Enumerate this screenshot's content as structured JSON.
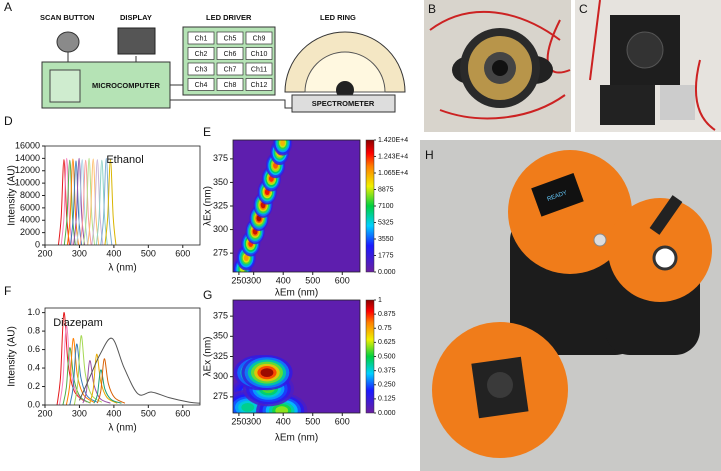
{
  "panel_labels": [
    "A",
    "B",
    "C",
    "D",
    "E",
    "F",
    "G",
    "H"
  ],
  "diagram": {
    "scan_button": "SCAN BUTTON",
    "display": "DISPLAY",
    "led_driver": "LED DRIVER",
    "led_ring": "LED RING",
    "microcomputer": "MICROCOMPUTER",
    "spectrometer": "SPECTROMETER",
    "channels": [
      "Ch1",
      "Ch5",
      "Ch9",
      "Ch2",
      "Ch6",
      "Ch10",
      "Ch3",
      "Ch7",
      "Ch11",
      "Ch4",
      "Ch8",
      "Ch12"
    ]
  },
  "photo_text": "READY",
  "chart_data": [
    {
      "type": "line",
      "title": "Ethanol",
      "x_label": "λ (nm)",
      "y_label": "Intensity (AU)",
      "xlim": [
        200,
        650
      ],
      "ylim": [
        0,
        16000
      ],
      "xticks": [
        200,
        300,
        400,
        500,
        600
      ],
      "yticks": [
        0,
        2000,
        4000,
        6000,
        8000,
        10000,
        12000,
        14000,
        16000
      ],
      "series": [
        {
          "color": "#e41a1c",
          "x": [
            239,
            247,
            255,
            263,
            271
          ],
          "values": [
            0,
            4500,
            13800,
            4500,
            0
          ]
        },
        {
          "color": "#f781bf",
          "x": [
            247,
            255,
            263,
            271,
            279
          ],
          "values": [
            0,
            4500,
            14000,
            4500,
            0
          ]
        },
        {
          "color": "#4daf4a",
          "x": [
            256,
            264,
            272,
            280,
            288
          ],
          "values": [
            0,
            4500,
            13700,
            4500,
            0
          ]
        },
        {
          "color": "#ff7f00",
          "x": [
            265,
            273,
            281,
            289,
            297
          ],
          "values": [
            0,
            4500,
            13900,
            4500,
            0
          ]
        },
        {
          "color": "#377eb8",
          "x": [
            274,
            282,
            290,
            298,
            306
          ],
          "values": [
            0,
            4500,
            13600,
            4500,
            0
          ]
        },
        {
          "color": "#984ea3",
          "x": [
            283,
            291,
            299,
            307,
            315
          ],
          "values": [
            0,
            4500,
            14000,
            4500,
            0
          ]
        },
        {
          "color": "#a6cee3",
          "x": [
            292,
            300,
            308,
            316,
            324
          ],
          "values": [
            0,
            4500,
            13800,
            4500,
            0
          ]
        },
        {
          "color": "#fb9a99",
          "x": [
            302,
            310,
            318,
            326,
            334
          ],
          "values": [
            0,
            4500,
            13700,
            4500,
            0
          ]
        },
        {
          "color": "#b2df8a",
          "x": [
            312,
            320,
            328,
            336,
            344
          ],
          "values": [
            0,
            4500,
            14000,
            4500,
            0
          ]
        },
        {
          "color": "#fdbf6f",
          "x": [
            324,
            332,
            340,
            348,
            356
          ],
          "values": [
            0,
            4500,
            13900,
            4500,
            0
          ]
        },
        {
          "color": "#cab2d6",
          "x": [
            336,
            344,
            352,
            360,
            368
          ],
          "values": [
            0,
            4500,
            13800,
            4500,
            0
          ]
        },
        {
          "color": "#8dd3c7",
          "x": [
            349,
            357,
            365,
            373,
            381
          ],
          "values": [
            0,
            4500,
            13700,
            4500,
            0
          ]
        },
        {
          "color": "#80b1d3",
          "x": [
            362,
            370,
            378,
            386,
            394
          ],
          "values": [
            0,
            4500,
            14000,
            4500,
            0
          ]
        },
        {
          "color": "#d9b500",
          "x": [
            374,
            382,
            390,
            398,
            406
          ],
          "values": [
            0,
            4500,
            13800,
            4500,
            0
          ]
        }
      ]
    },
    {
      "type": "heatmap",
      "x_label": "λEm (nm)",
      "y_label": "λEx (nm)",
      "xlim": [
        230,
        660
      ],
      "ylim": [
        255,
        395
      ],
      "xticks": [
        250,
        300,
        400,
        500,
        600
      ],
      "yticks": [
        275,
        300,
        325,
        350,
        375
      ],
      "clim": [
        0,
        14200
      ],
      "cticks": [
        {
          "value": 14200,
          "label": "1.420E+4"
        },
        {
          "value": 12430,
          "label": "1.243E+4"
        },
        {
          "value": 10650,
          "label": "1.065E+4"
        },
        8875,
        7100,
        5325,
        3550,
        1775,
        {
          "value": 0,
          "label": "0.000"
        }
      ],
      "cells": [
        {
          "em": 262,
          "ex": 258,
          "intensity": 9000
        },
        {
          "em": 275,
          "ex": 270,
          "intensity": 11000
        },
        {
          "em": 290,
          "ex": 285,
          "intensity": 12500
        },
        {
          "em": 305,
          "ex": 298,
          "intensity": 13500
        },
        {
          "em": 318,
          "ex": 312,
          "intensity": 14000
        },
        {
          "em": 332,
          "ex": 326,
          "intensity": 13500
        },
        {
          "em": 346,
          "ex": 340,
          "intensity": 13000
        },
        {
          "em": 360,
          "ex": 354,
          "intensity": 12500
        },
        {
          "em": 374,
          "ex": 368,
          "intensity": 12000
        },
        {
          "em": 388,
          "ex": 382,
          "intensity": 11500
        },
        {
          "em": 398,
          "ex": 392,
          "intensity": 10500
        }
      ]
    },
    {
      "type": "line",
      "title": "Diazepam",
      "x_label": "λ (nm)",
      "y_label": "Intensity (AU)",
      "xlim": [
        200,
        650
      ],
      "ylim": [
        0,
        1.05
      ],
      "xticks": [
        200,
        300,
        400,
        500,
        600
      ],
      "yticks": [
        {
          "value": 0,
          "label": "0.0"
        },
        0.2,
        0.4,
        0.6,
        0.8,
        {
          "value": 1,
          "label": "1.0"
        }
      ],
      "series": [
        {
          "color": "#e41a1c",
          "x": [
            235,
            245,
            255,
            267,
            285,
            315
          ],
          "values": [
            0,
            0.3,
            1,
            0.45,
            0.15,
            0.04
          ]
        },
        {
          "color": "#f781bf",
          "x": [
            242,
            252,
            262,
            274,
            292,
            322
          ],
          "values": [
            0,
            0.26,
            0.86,
            0.39,
            0.13,
            0.03
          ]
        },
        {
          "color": "#4daf4a",
          "x": [
            252,
            262,
            272,
            284,
            302,
            332
          ],
          "values": [
            0,
            0.19,
            0.62,
            0.28,
            0.09,
            0.02
          ]
        },
        {
          "color": "#ff7f00",
          "x": [
            262,
            272,
            282,
            294,
            312,
            342
          ],
          "values": [
            0,
            0.22,
            0.72,
            0.32,
            0.11,
            0.03
          ]
        },
        {
          "color": "#377eb8",
          "x": [
            272,
            282,
            292,
            304,
            322,
            352
          ],
          "values": [
            0,
            0.2,
            0.66,
            0.3,
            0.1,
            0.03
          ]
        },
        {
          "color": "#a6d854",
          "x": [
            285,
            295,
            305,
            317,
            335,
            365
          ],
          "values": [
            0,
            0.23,
            0.75,
            0.34,
            0.11,
            0.03
          ]
        },
        {
          "color": "#984ea3",
          "x": [
            310,
            320,
            330,
            342,
            360,
            390
          ],
          "values": [
            0.02,
            0.14,
            0.48,
            0.22,
            0.07,
            0.02
          ]
        },
        {
          "color": "#e6ab02",
          "x": [
            330,
            340,
            350,
            362,
            380,
            410
          ],
          "values": [
            0.02,
            0.17,
            0.55,
            0.25,
            0.08,
            0.02
          ]
        },
        {
          "color": "#1b9e77",
          "x": [
            342,
            352,
            362,
            374,
            392,
            422
          ],
          "values": [
            0.02,
            0.11,
            0.38,
            0.17,
            0.06,
            0.02
          ]
        },
        {
          "color": "#d95f02",
          "x": [
            352,
            362,
            372,
            384,
            402,
            432
          ],
          "values": [
            0.02,
            0.15,
            0.5,
            0.23,
            0.08,
            0.02
          ]
        },
        {
          "color": "#555555",
          "x": [
            300,
            330,
            360,
            395,
            430,
            470,
            510,
            560,
            620,
            650
          ],
          "values": [
            0.05,
            0.3,
            0.55,
            0.72,
            0.4,
            0.12,
            0.14,
            0.08,
            0.03,
            0.02
          ]
        }
      ]
    },
    {
      "type": "heatmap",
      "x_label": "λEm (nm)",
      "y_label": "λEx (nm)",
      "xlim": [
        230,
        660
      ],
      "ylim": [
        255,
        395
      ],
      "xticks": [
        250,
        300,
        400,
        500,
        600
      ],
      "yticks": [
        275,
        300,
        325,
        350,
        375
      ],
      "clim": [
        0,
        1
      ],
      "cticks": [
        1,
        0.875,
        0.75,
        0.625,
        {
          "value": 0.5,
          "label": "0.500"
        },
        0.375,
        {
          "value": 0.25,
          "label": "0.250"
        },
        0.125,
        {
          "value": 0,
          "label": "0.000"
        }
      ],
      "cells": [
        {
          "em": 300,
          "ex": 280,
          "intensity": 0.35
        },
        {
          "em": 280,
          "ex": 262,
          "intensity": 0.45
        },
        {
          "em": 395,
          "ex": 258,
          "intensity": 0.6
        },
        {
          "em": 350,
          "ex": 285,
          "intensity": 0.55
        },
        {
          "em": 320,
          "ex": 305,
          "intensity": 0.95
        },
        {
          "em": 345,
          "ex": 305,
          "intensity": 1
        }
      ]
    }
  ]
}
